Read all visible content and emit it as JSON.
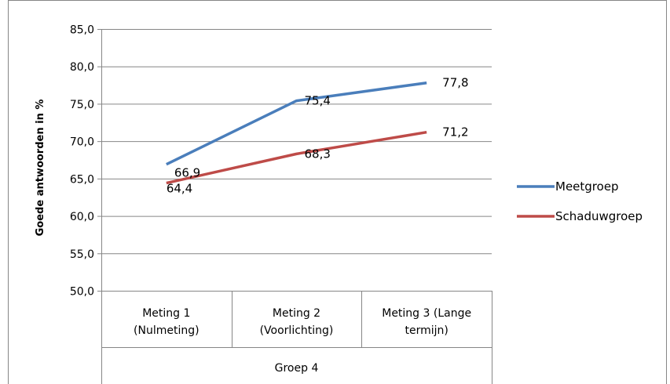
{
  "chart_data": {
    "type": "line",
    "ylabel": "Goede antwoorden in %",
    "ylim": [
      50,
      85
    ],
    "yticks": [
      "50,0",
      "55,0",
      "60,0",
      "65,0",
      "70,0",
      "75,0",
      "80,0",
      "85,0"
    ],
    "ytick_values": [
      50,
      55,
      60,
      65,
      70,
      75,
      80,
      85
    ],
    "categories": [
      [
        "Meting 1",
        "(Nulmeting)"
      ],
      [
        "Meting 2",
        "(Voorlichting)"
      ],
      [
        "Meting 3 (Lange",
        "termijn)"
      ]
    ],
    "group_label": "Groep 4",
    "grid": true,
    "legend_position": "right",
    "series": [
      {
        "name": "Meetgroep",
        "color": "#4a7ebb",
        "values": [
          66.9,
          75.4,
          77.8
        ],
        "labels": [
          "66,9",
          "75,4",
          "77,8"
        ]
      },
      {
        "name": "Schaduwgroep",
        "color": "#be4b48",
        "values": [
          64.4,
          68.3,
          71.2
        ],
        "labels": [
          "64,4",
          "68,3",
          "71,2"
        ]
      }
    ]
  }
}
